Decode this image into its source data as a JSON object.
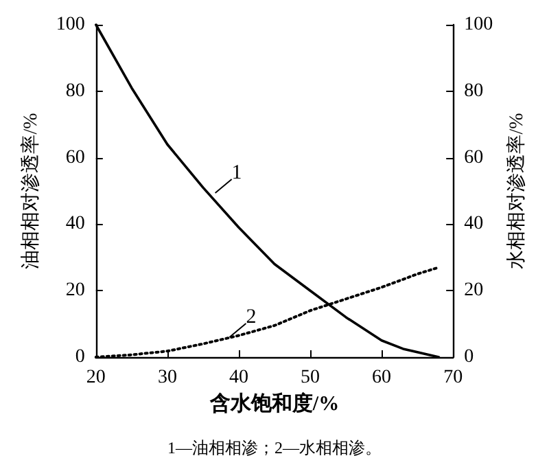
{
  "chart_data": {
    "type": "line",
    "xlabel": "含水饱和度/%",
    "ylabel": "油相相对渗透率/%",
    "y2label": "水相相对渗透率/%",
    "x": [
      20,
      25,
      30,
      35,
      40,
      45,
      50,
      55,
      60,
      63,
      68
    ],
    "series": [
      {
        "color": "#000000",
        "line_style": "solid",
        "values": [
          100,
          81,
          64,
          51,
          39,
          28,
          20,
          12,
          5,
          2.5,
          0
        ]
      },
      {
        "color": "#000000",
        "line_style": "dotted",
        "axis": "y2",
        "x": [
          20,
          25,
          30,
          35,
          40,
          45,
          50,
          55,
          60,
          65,
          68
        ],
        "values": [
          0,
          0.7,
          1.8,
          4,
          6.5,
          9.5,
          14,
          17.5,
          21,
          25,
          27
        ]
      }
    ],
    "xlim": [
      20,
      70
    ],
    "xticks": [
      20,
      30,
      40,
      50,
      60,
      70
    ],
    "ylim": [
      0,
      100
    ],
    "yticks": [
      0,
      20,
      40,
      60,
      80,
      100
    ],
    "y2lim": [
      0,
      100
    ],
    "y2ticks": [
      0,
      20,
      40,
      60,
      80,
      100
    ],
    "grid": false,
    "marker": "none",
    "annotations": [
      {
        "text": "1",
        "x": 36.7,
        "y": 49.4
      },
      {
        "text": "2",
        "x": 38.7,
        "y": 6
      },
      "1—油相相渗；2—水相相渗。"
    ]
  }
}
